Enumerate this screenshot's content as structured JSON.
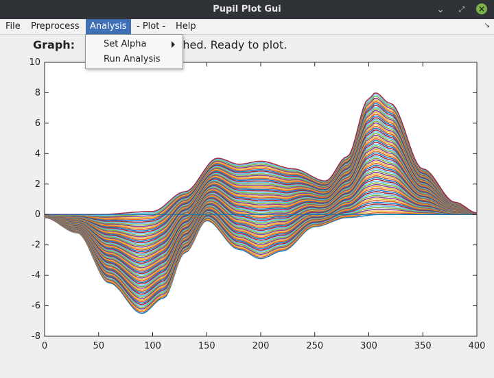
{
  "window": {
    "title": "Pupil Plot Gui"
  },
  "menubar": {
    "items": [
      {
        "label": "File",
        "active": false
      },
      {
        "label": "Preprocess",
        "active": false
      },
      {
        "label": "Analysis",
        "active": true
      },
      {
        "label": "- Plot -",
        "active": false
      },
      {
        "label": "Help",
        "active": false
      }
    ]
  },
  "analysis_menu": {
    "items": [
      {
        "label": "Set Alpha",
        "has_submenu": true
      },
      {
        "label": "Run Analysis",
        "has_submenu": false
      }
    ]
  },
  "status": {
    "label": "Graph:",
    "message": "shed.  Ready to plot."
  },
  "chart_data": {
    "type": "line",
    "title": "",
    "xlabel": "",
    "ylabel": "",
    "xlim": [
      0,
      400
    ],
    "ylim": [
      -8,
      10
    ],
    "x_ticks": [
      0,
      50,
      100,
      150,
      200,
      250,
      300,
      350,
      400
    ],
    "y_ticks": [
      -8,
      -6,
      -4,
      -2,
      0,
      2,
      4,
      6,
      8,
      10
    ],
    "grid": false,
    "legend": "none",
    "description_series": "dense family of many colored lines between an upper and lower envelope",
    "upper_envelope": {
      "x": [
        0,
        50,
        100,
        130,
        160,
        180,
        200,
        230,
        260,
        280,
        300,
        306,
        320,
        350,
        380,
        400
      ],
      "y": [
        0,
        0,
        0.2,
        1.5,
        3.7,
        3.3,
        3.5,
        3.0,
        2.2,
        3.8,
        7.6,
        8.0,
        7.3,
        3.0,
        0.8,
        0.1
      ]
    },
    "lower_envelope": {
      "x": [
        0,
        30,
        60,
        90,
        110,
        130,
        150,
        180,
        200,
        220,
        250,
        280,
        310,
        400
      ],
      "y": [
        -0.2,
        -1.2,
        -4.5,
        -6.5,
        -5.5,
        -2.5,
        -0.4,
        -2.3,
        -2.9,
        -2.4,
        -0.8,
        -0.2,
        0,
        0
      ]
    },
    "colors": [
      "#0072bd",
      "#d95319",
      "#edb120",
      "#7e2f8e",
      "#77ac30",
      "#4dbeee",
      "#a2142f"
    ]
  }
}
